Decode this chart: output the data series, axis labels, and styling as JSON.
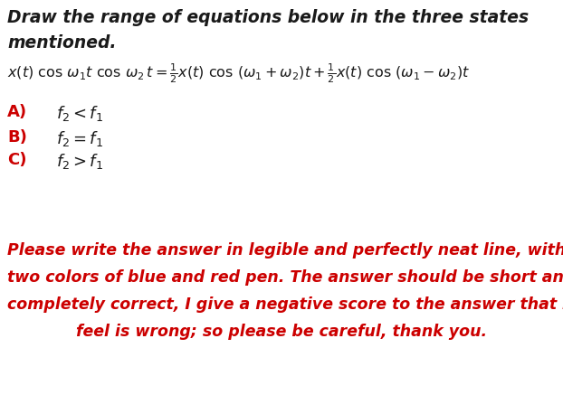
{
  "bg_color": "#ffffff",
  "title_line1": "Draw the range of equations below in the three states",
  "title_line2": "mentioned.",
  "items": [
    {
      "label": "A)",
      "expr": "$f_2 < f_1$"
    },
    {
      "label": "B)",
      "expr": "$f_2 = f_1$"
    },
    {
      "label": "C)",
      "expr": "$f_2 > f_1$"
    }
  ],
  "footer_lines": [
    "Please write the answer in legible and perfectly neat line, with",
    "two colors of blue and red pen. The answer should be short and",
    "completely correct, I give a negative score to the answer that I",
    "feel is wrong; so please be careful, thank you."
  ],
  "title_color": "#1a1a1a",
  "label_A_color": "#cc0000",
  "label_B_color": "#cc0000",
  "label_C_color": "#cc0000",
  "expr_color": "#1a1a1a",
  "footer_color": "#cc0000",
  "equation_color": "#1a1a1a",
  "title_fontsize": 13.5,
  "equation_fontsize": 11.5,
  "item_label_fontsize": 13.0,
  "item_expr_fontsize": 13.0,
  "footer_fontsize": 12.5
}
